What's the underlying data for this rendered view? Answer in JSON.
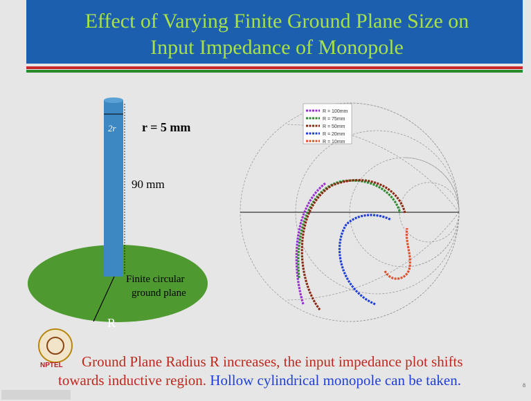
{
  "header": {
    "title_lines": [
      "Effect of Varying Finite Ground Plane Size on",
      "Input Impedance of Monopole"
    ]
  },
  "diagram": {
    "diameter_label": "2r",
    "radius_label": "r = 5 mm",
    "height_label": "90 mm",
    "ground_plane_label_lines": [
      "Finite circular",
      "ground plane"
    ],
    "ground_radius_label": "R"
  },
  "smith_chart": {
    "legend": [
      {
        "name": "R = 100mm",
        "color": "#9a2fd0"
      },
      {
        "name": "R = 75mm",
        "color": "#2e8b2e"
      },
      {
        "name": "R = 50mm",
        "color": "#8b2a14"
      },
      {
        "name": "R = 20mm",
        "color": "#1f3fd8"
      },
      {
        "name": "R = 10mm",
        "color": "#e0502a"
      }
    ]
  },
  "body": {
    "line1": "Ground Plane Radius R increases, the input impedance plot shifts",
    "line2_red": "towards inductive region.",
    "line2_blue": "Hollow cylindrical monopole can be taken."
  },
  "logo": {
    "text": "NPTEL"
  },
  "page_number": "8"
}
